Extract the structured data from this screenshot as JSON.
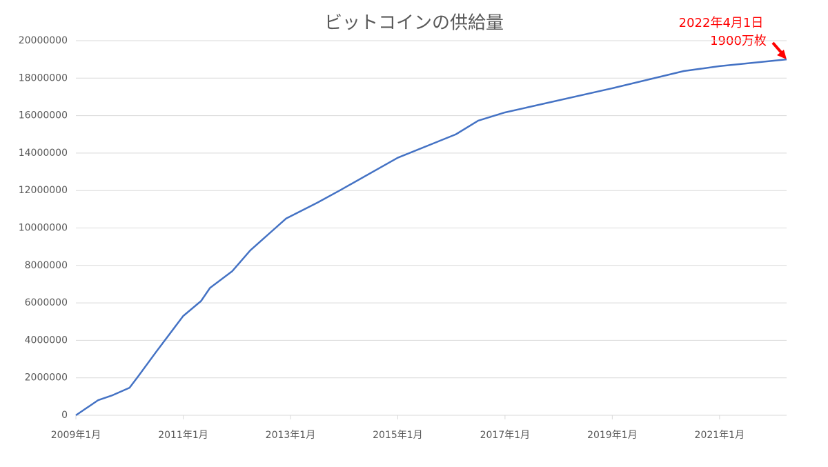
{
  "chart_data": {
    "type": "line",
    "title": "ビットコインの供給量",
    "x": [
      "2009-01",
      "2009-06",
      "2009-09",
      "2010-01",
      "2010-03",
      "2010-07",
      "2011-01",
      "2011-05",
      "2011-07",
      "2011-12",
      "2012-04",
      "2012-08",
      "2012-12",
      "2013-07",
      "2013-12",
      "2015-01",
      "2016-02",
      "2016-07",
      "2017-01",
      "2019-01",
      "2020-05",
      "2021-01",
      "2022-04"
    ],
    "series": [
      {
        "name": "ビットコインの供給量",
        "color": "#4472c4",
        "values": [
          0,
          810000,
          1050000,
          1470000,
          2100000,
          3400000,
          5300000,
          6100000,
          6800000,
          7700000,
          8800000,
          9650000,
          10500000,
          11350000,
          12000000,
          13750000,
          15000000,
          15730000,
          16170000,
          17460000,
          18380000,
          18640000,
          19000000
        ]
      }
    ],
    "xlim": [
      "2009-01",
      "2022-04"
    ],
    "xticks": [
      {
        "value": "2009-01",
        "label": "2009年1月"
      },
      {
        "value": "2011-01",
        "label": "2011年1月"
      },
      {
        "value": "2013-01",
        "label": "2013年1月"
      },
      {
        "value": "2015-01",
        "label": "2015年1月"
      },
      {
        "value": "2017-01",
        "label": "2017年1月"
      },
      {
        "value": "2019-01",
        "label": "2019年1月"
      },
      {
        "value": "2021-01",
        "label": "2021年1月"
      }
    ],
    "ylim": [
      0,
      20000000
    ],
    "yticks": [
      0,
      2000000,
      4000000,
      6000000,
      8000000,
      10000000,
      12000000,
      14000000,
      16000000,
      18000000,
      20000000
    ],
    "grid": true,
    "annotation": [
      "2022年4月1日",
      "1900万枚"
    ]
  }
}
